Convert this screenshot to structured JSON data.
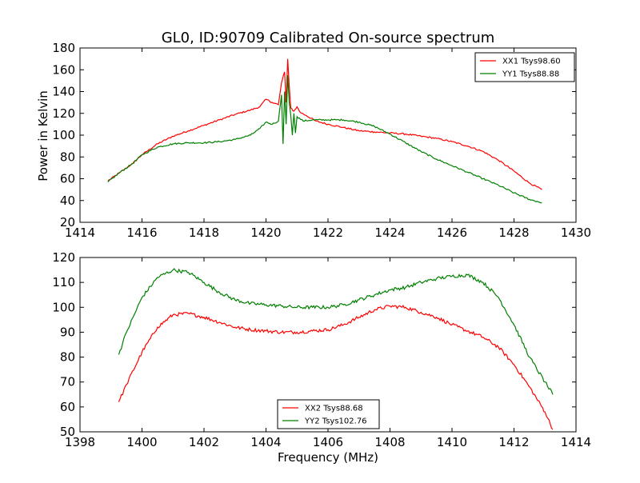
{
  "figure": {
    "title": "GL0, ID:90709 Calibrated On-source spectrum",
    "xlabel": "Frequency (MHz)",
    "ylabel": "Power in Kelvin"
  },
  "chart_data": [
    {
      "type": "line",
      "title": "GL0, ID:90709 Calibrated On-source spectrum",
      "xlabel": "",
      "ylabel": "Power in Kelvin",
      "xlim": [
        1414,
        1430
      ],
      "ylim": [
        20,
        180
      ],
      "xticks": [
        1414,
        1416,
        1418,
        1420,
        1422,
        1424,
        1426,
        1428,
        1430
      ],
      "yticks": [
        20,
        40,
        60,
        80,
        100,
        120,
        140,
        160,
        180
      ],
      "grid": false,
      "legend": "top-right",
      "series": [
        {
          "name": "XX1 Tsys98.60",
          "color": "#ff0000",
          "x": [
            1414.9,
            1415.3,
            1415.7,
            1416.0,
            1416.5,
            1417.0,
            1417.5,
            1418.0,
            1418.5,
            1419.0,
            1419.5,
            1419.8,
            1420.0,
            1420.2,
            1420.4,
            1420.5,
            1420.6,
            1420.65,
            1420.7,
            1420.75,
            1420.8,
            1420.9,
            1421.0,
            1421.1,
            1421.3,
            1421.6,
            1422.0,
            1422.5,
            1423.0,
            1423.5,
            1424.0,
            1424.5,
            1425.0,
            1425.5,
            1426.0,
            1426.5,
            1427.0,
            1427.5,
            1428.0,
            1428.5,
            1428.9
          ],
          "y": [
            58,
            66,
            74,
            82,
            92,
            99,
            104,
            109,
            114,
            119,
            123,
            126,
            133,
            130,
            128,
            148,
            158,
            130,
            170,
            145,
            125,
            122,
            126,
            121,
            118,
            113,
            110,
            107,
            104,
            103,
            102,
            101,
            99,
            97,
            94,
            90,
            85,
            77,
            67,
            56,
            50
          ]
        },
        {
          "name": "YY1 Tsys88.88",
          "color": "#008000",
          "x": [
            1414.9,
            1415.3,
            1415.7,
            1416.0,
            1416.5,
            1417.0,
            1417.5,
            1418.0,
            1418.5,
            1419.0,
            1419.5,
            1419.8,
            1420.0,
            1420.2,
            1420.4,
            1420.5,
            1420.55,
            1420.6,
            1420.65,
            1420.7,
            1420.75,
            1420.8,
            1420.85,
            1420.9,
            1420.95,
            1421.0,
            1421.2,
            1421.5,
            1422.0,
            1422.5,
            1423.0,
            1423.5,
            1424.0,
            1424.5,
            1425.0,
            1425.5,
            1426.0,
            1426.5,
            1427.0,
            1427.5,
            1428.0,
            1428.5,
            1428.9
          ],
          "y": [
            57,
            66,
            74,
            82,
            89,
            92,
            93,
            93,
            94,
            96,
            100,
            106,
            112,
            110,
            113,
            137,
            92,
            140,
            110,
            155,
            130,
            118,
            100,
            120,
            102,
            117,
            113,
            114,
            114,
            114,
            112,
            108,
            101,
            93,
            85,
            78,
            72,
            66,
            60,
            54,
            47,
            41,
            38
          ]
        }
      ]
    },
    {
      "type": "line",
      "title": "",
      "xlabel": "Frequency (MHz)",
      "ylabel": "",
      "xlim": [
        1398,
        1414
      ],
      "ylim": [
        50,
        120
      ],
      "xticks": [
        1398,
        1400,
        1402,
        1404,
        1406,
        1408,
        1410,
        1412,
        1414
      ],
      "yticks": [
        50,
        60,
        70,
        80,
        90,
        100,
        110,
        120
      ],
      "grid": false,
      "legend": "bottom-center",
      "series": [
        {
          "name": "XX2 Tsys88.68",
          "color": "#ff0000",
          "x": [
            1399.25,
            1399.5,
            1400.0,
            1400.5,
            1401.0,
            1401.5,
            1402.0,
            1402.5,
            1403.0,
            1403.5,
            1404.0,
            1404.5,
            1405.0,
            1405.5,
            1406.0,
            1406.5,
            1407.0,
            1407.5,
            1408.0,
            1408.5,
            1409.0,
            1409.5,
            1410.0,
            1410.5,
            1411.0,
            1411.5,
            1412.0,
            1412.5,
            1413.0,
            1413.25
          ],
          "y": [
            62,
            69,
            82,
            92,
            97,
            97.5,
            96,
            94,
            92,
            91,
            90.5,
            90,
            90,
            90.5,
            91,
            93,
            96,
            99,
            100.5,
            100,
            98,
            96,
            93,
            90.5,
            88,
            84,
            77,
            68,
            58,
            51
          ]
        },
        {
          "name": "YY2 Tsys102.76",
          "color": "#008000",
          "x": [
            1399.25,
            1399.5,
            1400.0,
            1400.5,
            1401.0,
            1401.5,
            1402.0,
            1402.5,
            1403.0,
            1403.5,
            1404.0,
            1404.5,
            1405.0,
            1405.5,
            1406.0,
            1406.5,
            1407.0,
            1407.5,
            1408.0,
            1408.5,
            1409.0,
            1409.5,
            1410.0,
            1410.5,
            1411.0,
            1411.5,
            1412.0,
            1412.5,
            1413.0,
            1413.25
          ],
          "y": [
            81,
            90,
            104,
            112,
            115,
            114,
            110,
            106,
            103,
            101.5,
            101,
            100.5,
            100,
            100,
            100,
            101,
            103,
            105,
            107,
            108,
            110,
            111.5,
            112.5,
            113,
            110,
            104,
            93,
            80,
            70,
            65
          ]
        }
      ]
    }
  ]
}
